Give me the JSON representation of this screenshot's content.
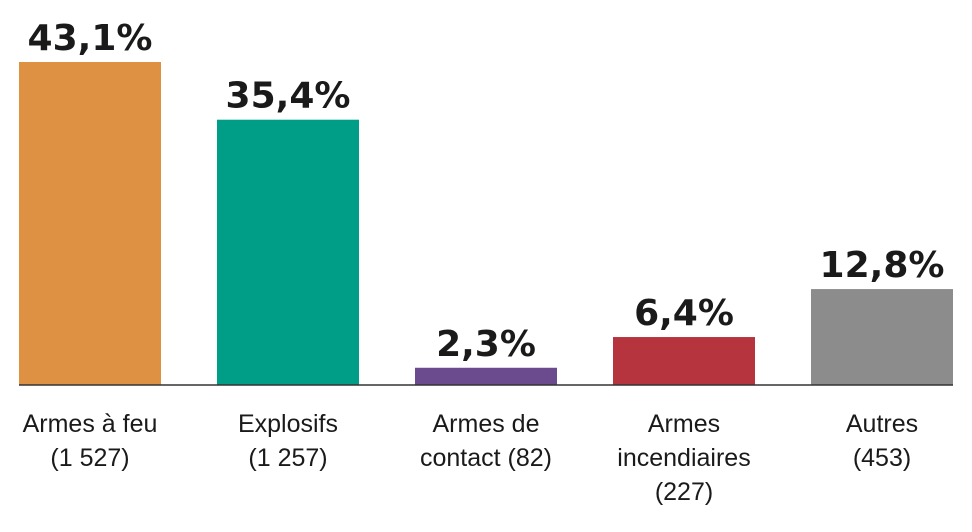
{
  "chart_data": {
    "type": "bar",
    "categories": [
      [
        "Armes à feu",
        "(1 527)"
      ],
      [
        "Explosifs",
        "(1 257)"
      ],
      [
        "Armes de",
        "contact (82)"
      ],
      [
        "Armes",
        "incendiaires",
        "(227)"
      ],
      [
        "Autres",
        "(453)"
      ]
    ],
    "values": [
      43.1,
      35.4,
      2.3,
      6.4,
      12.8
    ],
    "value_labels": [
      "43,1%",
      "35,4%",
      "2,3%",
      "6,4%",
      "12,8%"
    ],
    "colors": [
      "#DE9142",
      "#009E87",
      "#6C4A8E",
      "#B5343D",
      "#8C8C8C"
    ],
    "axis_color": "#333333",
    "ylim": [
      0,
      43.1
    ],
    "grid": false,
    "legend": "none"
  }
}
